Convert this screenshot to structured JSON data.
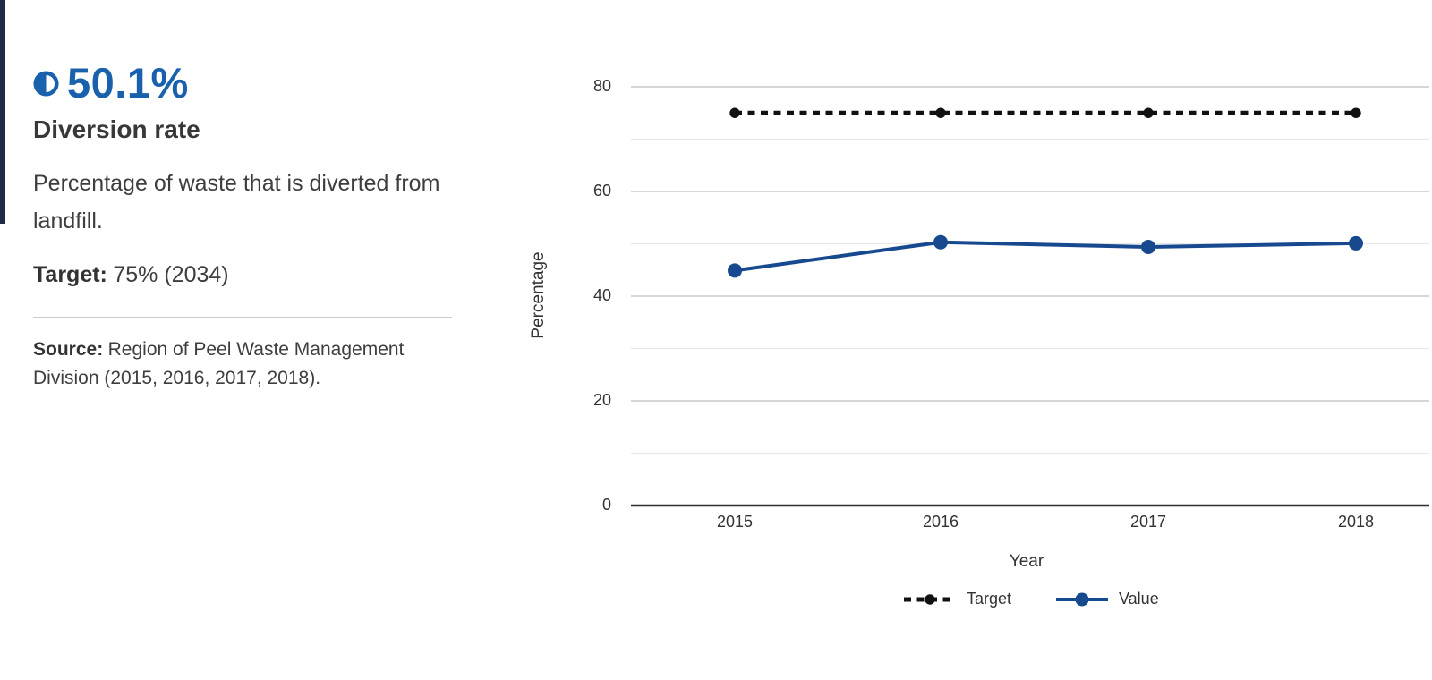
{
  "accent_color": "#1961ac",
  "panel": {
    "value": "50.1%",
    "value_icon": "half-circle-icon",
    "title": "Diversion rate",
    "description": "Percentage of waste that is diverted from landfill.",
    "target_label": "Target:",
    "target_value": "75% (2034)",
    "source_label": "Source:",
    "source_value": "Region of Peel Waste Management Division (2015, 2016, 2017, 2018)."
  },
  "chart_data": {
    "type": "line",
    "x": [
      "2015",
      "2016",
      "2017",
      "2018"
    ],
    "series": [
      {
        "name": "Target",
        "values": [
          75,
          75,
          75,
          75
        ],
        "style": "dashed",
        "color": "#111111"
      },
      {
        "name": "Value",
        "values": [
          44.9,
          50.3,
          49.4,
          50.1
        ],
        "style": "solid",
        "color": "#17498f"
      }
    ],
    "title": "",
    "xlabel": "Year",
    "ylabel": "Percentage",
    "ylim": [
      0,
      80
    ],
    "yticks": [
      0,
      20,
      40,
      60,
      80
    ],
    "minor_gridlines": [
      10,
      30,
      50,
      70
    ],
    "grid": true,
    "legend_position": "bottom",
    "legend": [
      "Target",
      "Value"
    ]
  }
}
